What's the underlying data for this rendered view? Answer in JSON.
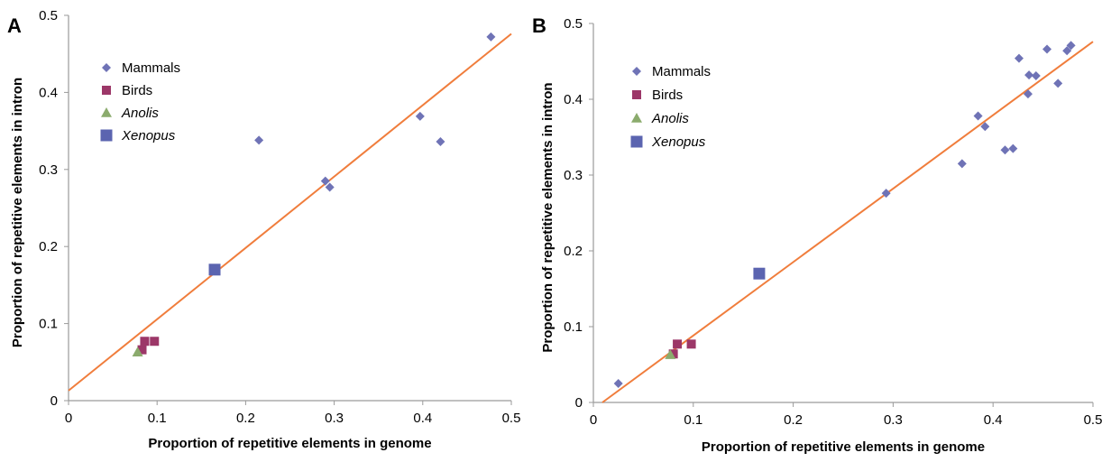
{
  "colors": {
    "mammals": "#6f73b6",
    "birds": "#9c3768",
    "anolis": "#8bab6d",
    "xenopus": "#5b64b0",
    "fit": "#f07d3c",
    "axis": "#9a9a9a"
  },
  "chart_data": [
    {
      "type": "scatter",
      "panel": "A",
      "xlabel": "Proportion of repetitive elements in genome",
      "ylabel": "Proportion of repetitive elements in intron",
      "xlim": [
        0,
        0.5
      ],
      "ylim": [
        0,
        0.5
      ],
      "x_ticks": [
        "0",
        "0.1",
        "0.2",
        "0.3",
        "0.4",
        "0.5"
      ],
      "y_ticks": [
        "0",
        "0.1",
        "0.2",
        "0.3",
        "0.4",
        "0.5"
      ],
      "grid": false,
      "legend_position": "top-left",
      "series": [
        {
          "name": "Mammals",
          "marker": "diamond",
          "italic": false,
          "points": [
            [
              0.215,
              0.338
            ],
            [
              0.29,
              0.285
            ],
            [
              0.295,
              0.277
            ],
            [
              0.397,
              0.369
            ],
            [
              0.42,
              0.336
            ],
            [
              0.477,
              0.472
            ]
          ]
        },
        {
          "name": "Birds",
          "marker": "square",
          "italic": false,
          "points": [
            [
              0.083,
              0.066
            ],
            [
              0.086,
              0.077
            ],
            [
              0.097,
              0.077
            ]
          ]
        },
        {
          "name": "Anolis",
          "marker": "triangle",
          "italic": true,
          "points": [
            [
              0.078,
              0.063
            ]
          ]
        },
        {
          "name": "Xenopus",
          "marker": "square-large",
          "italic": true,
          "points": [
            [
              0.165,
              0.17
            ]
          ]
        }
      ],
      "fit_line": [
        [
          0,
          0.013
        ],
        [
          0.5,
          0.476
        ]
      ]
    },
    {
      "type": "scatter",
      "panel": "B",
      "xlabel": "Proportion of repetitive elements in genome",
      "ylabel": "Proportion of repetitive elements in intron",
      "xlim": [
        0,
        0.5
      ],
      "ylim": [
        0,
        0.5
      ],
      "x_ticks": [
        "0",
        "0.1",
        "0.2",
        "0.3",
        "0.4",
        "0.5"
      ],
      "y_ticks": [
        "0",
        "0.1",
        "0.2",
        "0.3",
        "0.4",
        "0.5"
      ],
      "grid": false,
      "legend_position": "top-left",
      "series": [
        {
          "name": "Mammals",
          "marker": "diamond",
          "italic": false,
          "points": [
            [
              0.025,
              0.025
            ],
            [
              0.293,
              0.276
            ],
            [
              0.369,
              0.315
            ],
            [
              0.385,
              0.378
            ],
            [
              0.392,
              0.364
            ],
            [
              0.412,
              0.333
            ],
            [
              0.42,
              0.335
            ],
            [
              0.426,
              0.454
            ],
            [
              0.435,
              0.407
            ],
            [
              0.436,
              0.432
            ],
            [
              0.443,
              0.431
            ],
            [
              0.454,
              0.466
            ],
            [
              0.465,
              0.421
            ],
            [
              0.474,
              0.464
            ],
            [
              0.478,
              0.471
            ]
          ]
        },
        {
          "name": "Birds",
          "marker": "square",
          "italic": false,
          "points": [
            [
              0.08,
              0.064
            ],
            [
              0.084,
              0.077
            ],
            [
              0.098,
              0.077
            ]
          ]
        },
        {
          "name": "Anolis",
          "marker": "triangle",
          "italic": true,
          "points": [
            [
              0.077,
              0.063
            ]
          ]
        },
        {
          "name": "Xenopus",
          "marker": "square-large",
          "italic": true,
          "points": [
            [
              0.166,
              0.17
            ]
          ]
        }
      ],
      "fit_line": [
        [
          0.009,
          0
        ],
        [
          0.5,
          0.476
        ]
      ]
    }
  ]
}
